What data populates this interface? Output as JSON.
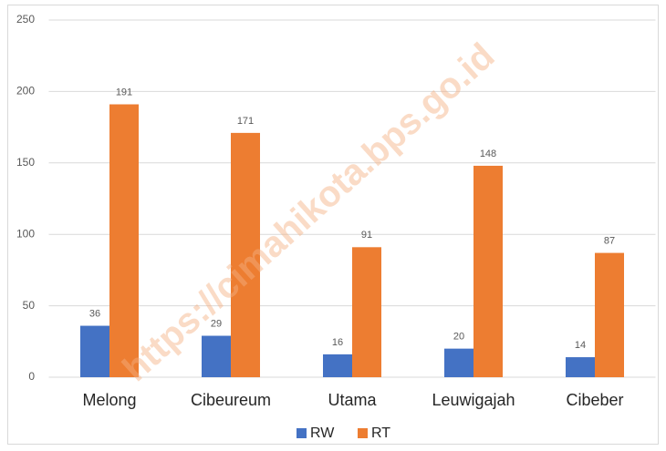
{
  "chart_data": {
    "type": "bar",
    "categories": [
      "Melong",
      "Cibeureum",
      "Utama",
      "Leuwigajah",
      "Cibeber"
    ],
    "series": [
      {
        "name": "RW",
        "color": "#4472c4",
        "values": [
          36,
          29,
          16,
          20,
          14
        ]
      },
      {
        "name": "RT",
        "color": "#ed7d31",
        "values": [
          191,
          171,
          91,
          148,
          87
        ]
      }
    ],
    "ylim": [
      0,
      250
    ],
    "yticks": [
      0,
      50,
      100,
      150,
      200,
      250
    ],
    "grid": true,
    "legend": "bottom",
    "watermark": "https://cimahikota.bps.go.id"
  }
}
